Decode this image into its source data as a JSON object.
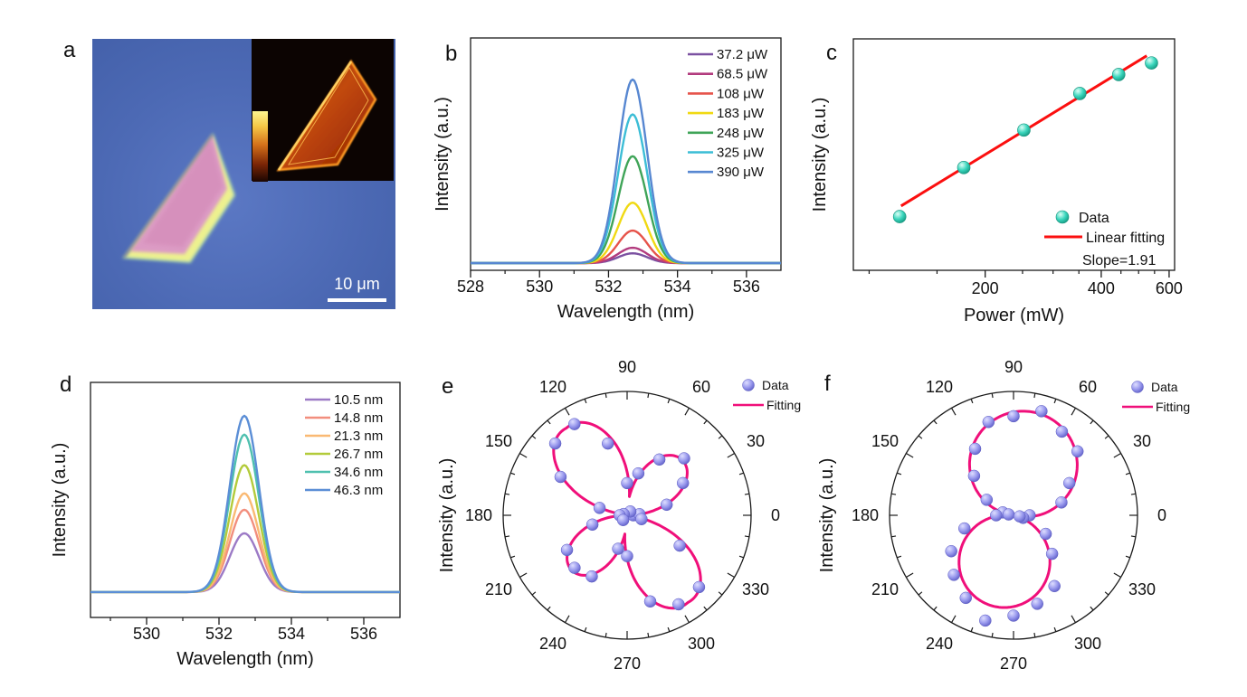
{
  "figure": {
    "background": "#ffffff"
  },
  "panels": {
    "a": "a",
    "b": "b",
    "c": "c",
    "d": "d",
    "e": "e",
    "f": "f"
  },
  "panel_a": {
    "scale_bar_label": "10 μm",
    "description_colors": {
      "background_blue": "#4c69b4",
      "flake_face_pink": "#dc9bc4",
      "flake_edge_yellow": "#edf18f",
      "inset_background": "#0c0402",
      "inset_flake_orange": "#ff9922"
    }
  },
  "chart_data": [
    {
      "id": "b",
      "type": "line",
      "panel": "b",
      "xlabel": "Wavelength (nm)",
      "ylabel": "Intensity (a.u.)",
      "xlim": [
        528,
        537
      ],
      "xticks": [
        528,
        530,
        532,
        534,
        536
      ],
      "minor_ticks": [
        529,
        531,
        533,
        535
      ],
      "peak_center_nm": 532.7,
      "peak_sigma_nm": 0.42,
      "baseline_frac": 0.031,
      "legend_position": "upper right",
      "series": [
        {
          "label": "37.2 μW",
          "color": "#7b51a1",
          "peak_frac": 0.042
        },
        {
          "label": "68.5 μW",
          "color": "#b23b7e",
          "peak_frac": 0.066
        },
        {
          "label": "108 μW",
          "color": "#e6534a",
          "peak_frac": 0.14
        },
        {
          "label": "183 μW",
          "color": "#f0d912",
          "peak_frac": 0.26
        },
        {
          "label": "248 μW",
          "color": "#3fa458",
          "peak_frac": 0.46
        },
        {
          "label": "325 μW",
          "color": "#3cbdd6",
          "peak_frac": 0.64
        },
        {
          "label": "390 μW",
          "color": "#5787d1",
          "peak_frac": 0.79
        }
      ]
    },
    {
      "id": "c",
      "type": "scatter",
      "panel": "c",
      "xlabel": "Power (mW)",
      "ylabel": "Intensity (a.u.)",
      "xscale": "log",
      "xlim": [
        91,
        620
      ],
      "xticks": [
        200,
        400,
        600
      ],
      "minor_ticks": [
        100,
        150,
        250,
        300,
        350,
        450,
        500,
        550
      ],
      "points": [
        {
          "power_mW": 120,
          "y_frac": 0.232
        },
        {
          "power_mW": 176,
          "y_frac": 0.444
        },
        {
          "power_mW": 252,
          "y_frac": 0.606
        },
        {
          "power_mW": 352,
          "y_frac": 0.764
        },
        {
          "power_mW": 444,
          "y_frac": 0.846
        },
        {
          "power_mW": 540,
          "y_frac": 0.896
        }
      ],
      "fit_line": {
        "x1": 121,
        "y1": 0.278,
        "x2": 525,
        "y2": 0.927
      },
      "legend": {
        "data_label": "Data",
        "fit_label": "Linear fitting",
        "annotation": "Slope=1.91"
      },
      "marker_color": "#2fcbb3",
      "line_color": "#fb0f0f"
    },
    {
      "id": "d",
      "type": "line",
      "panel": "d",
      "xlabel": "Wavelength (nm)",
      "ylabel": "Intensity (a.u.)",
      "xlim": [
        528.45,
        537
      ],
      "xticks": [
        530,
        532,
        534,
        536
      ],
      "minor_ticks": [
        529,
        531,
        533,
        535
      ],
      "peak_center_nm": 532.7,
      "peak_sigma_nm": 0.4,
      "baseline_frac": 0.108,
      "legend_position": "upper right",
      "series": [
        {
          "label": "10.5 nm",
          "color": "#9c7ac6",
          "peak_frac": 0.25
        },
        {
          "label": "14.8 nm",
          "color": "#f28e7d",
          "peak_frac": 0.35
        },
        {
          "label": "21.3 nm",
          "color": "#fab973",
          "peak_frac": 0.42
        },
        {
          "label": "26.7 nm",
          "color": "#b3cb3b",
          "peak_frac": 0.54
        },
        {
          "label": "34.6 nm",
          "color": "#4fc0af",
          "peak_frac": 0.67
        },
        {
          "label": "46.3 nm",
          "color": "#5b8ed6",
          "peak_frac": 0.75
        }
      ]
    },
    {
      "id": "e",
      "type": "polar",
      "panel": "e",
      "ylabel": "Intensity (a.u.)",
      "angle_labels": [
        0,
        30,
        60,
        90,
        120,
        150,
        180,
        210,
        240,
        270,
        300,
        330
      ],
      "fit_model": {
        "kind": "quad",
        "petals": [
          {
            "angle": 45,
            "amp": 0.63
          },
          {
            "angle": 127,
            "amp": 0.86
          },
          {
            "angle": 225,
            "amp": 0.62
          },
          {
            "angle": 303,
            "amp": 0.86
          }
        ]
      },
      "data_points": [
        [
          0,
          0.05
        ],
        [
          5,
          0.1
        ],
        [
          15,
          0.33
        ],
        [
          30,
          0.52
        ],
        [
          45,
          0.65
        ],
        [
          50,
          0.04
        ],
        [
          60,
          0.52
        ],
        [
          75,
          0.35
        ],
        [
          90,
          0.26
        ],
        [
          105,
          0.6
        ],
        [
          120,
          0.85
        ],
        [
          135,
          0.82
        ],
        [
          150,
          0.62
        ],
        [
          160,
          0.03
        ],
        [
          165,
          0.23
        ],
        [
          180,
          0.06
        ],
        [
          195,
          0.29
        ],
        [
          210,
          0.56
        ],
        [
          225,
          0.6
        ],
        [
          230,
          0.05
        ],
        [
          240,
          0.57
        ],
        [
          255,
          0.28
        ],
        [
          270,
          0.33
        ],
        [
          285,
          0.72
        ],
        [
          300,
          0.83
        ],
        [
          315,
          0.82
        ],
        [
          330,
          0.49
        ],
        [
          345,
          0.12
        ]
      ],
      "legend": {
        "data_label": "Data",
        "fit_label": "Fitting"
      },
      "marker_color": "#8d8de9",
      "fit_color": "#f00f7a"
    },
    {
      "id": "f",
      "type": "polar",
      "panel": "f",
      "ylabel": "Intensity (a.u.)",
      "angle_labels": [
        0,
        30,
        60,
        90,
        120,
        150,
        180,
        210,
        240,
        270,
        300,
        330
      ],
      "fit_model": {
        "kind": "dipole",
        "axis_deg": 79,
        "amp": 0.8,
        "offset": 0.06
      },
      "data_points": [
        [
          0,
          0.13
        ],
        [
          15,
          0.4
        ],
        [
          30,
          0.52
        ],
        [
          45,
          0.73
        ],
        [
          60,
          0.78
        ],
        [
          75,
          0.87
        ],
        [
          90,
          0.8
        ],
        [
          105,
          0.78
        ],
        [
          120,
          0.62
        ],
        [
          135,
          0.45
        ],
        [
          150,
          0.25
        ],
        [
          165,
          0.09
        ],
        [
          170,
          0.04
        ],
        [
          180,
          0.14
        ],
        [
          195,
          0.41
        ],
        [
          210,
          0.58
        ],
        [
          225,
          0.68
        ],
        [
          240,
          0.77
        ],
        [
          255,
          0.88
        ],
        [
          270,
          0.81
        ],
        [
          285,
          0.74
        ],
        [
          300,
          0.66
        ],
        [
          315,
          0.44
        ],
        [
          330,
          0.3
        ],
        [
          345,
          0.08
        ],
        [
          350,
          0.05
        ]
      ],
      "legend": {
        "data_label": "Data",
        "fit_label": "Fitting"
      },
      "marker_color": "#8d8de9",
      "fit_color": "#f00f7a"
    }
  ]
}
